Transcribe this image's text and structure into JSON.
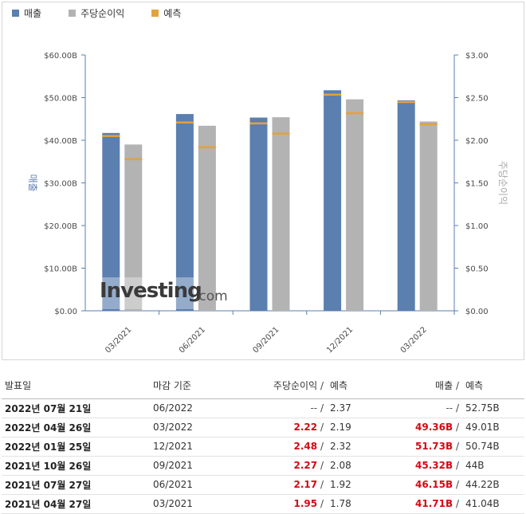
{
  "legend": {
    "items": [
      {
        "label": "매출",
        "color": "#5b7faf"
      },
      {
        "label": "주당순이익",
        "color": "#b3b3b3"
      },
      {
        "label": "예측",
        "color": "#e3a23a"
      }
    ]
  },
  "watermark": {
    "brand": "Investing",
    "suffix": ".com"
  },
  "chart_data": {
    "type": "bar",
    "title": "",
    "categories": [
      "03/2021",
      "06/2021",
      "09/2021",
      "12/2021",
      "03/2022"
    ],
    "series": [
      {
        "name": "매출",
        "axis": "left",
        "color": "#5b7faf",
        "values": [
          41.71,
          46.15,
          45.32,
          51.73,
          49.36
        ],
        "forecast": [
          41.04,
          44.22,
          44.0,
          50.74,
          49.01
        ]
      },
      {
        "name": "주당순이익",
        "axis": "right",
        "color": "#b3b3b3",
        "values": [
          1.95,
          2.17,
          2.27,
          2.48,
          2.22
        ],
        "forecast": [
          1.78,
          1.92,
          2.08,
          2.32,
          2.19
        ]
      }
    ],
    "forecast_color": "#e3a23a",
    "ylabel_left": "매출",
    "ylabel_right": "주당순이익",
    "ylim_left": [
      0,
      60
    ],
    "ylim_right": [
      0,
      3
    ],
    "left_ticks": [
      "$0.00",
      "$10.00B",
      "$20.00B",
      "$30.00B",
      "$40.00B",
      "$50.00B",
      "$60.00B"
    ],
    "right_ticks": [
      "$0.00",
      "$0.50",
      "$1.00",
      "$1.50",
      "$2.00",
      "$2.50",
      "$3.00"
    ],
    "grid": false
  },
  "table": {
    "headers": {
      "date": "발표일",
      "period": "마감 기준",
      "eps": "주당순이익",
      "eps_forecast": "예측",
      "revenue": "매출",
      "revenue_forecast": "예측",
      "slash": "/"
    },
    "rows": [
      {
        "date": "2022년 07월 21일",
        "period": "06/2022",
        "eps": "--",
        "eps_forecast": "2.37",
        "revenue": "--",
        "revenue_forecast": "52.75B"
      },
      {
        "date": "2022년 04월 26일",
        "period": "03/2022",
        "eps": "2.22",
        "eps_forecast": "2.19",
        "revenue": "49.36B",
        "revenue_forecast": "49.01B"
      },
      {
        "date": "2022년 01월 25일",
        "period": "12/2021",
        "eps": "2.48",
        "eps_forecast": "2.32",
        "revenue": "51.73B",
        "revenue_forecast": "50.74B"
      },
      {
        "date": "2021년 10월 26일",
        "period": "09/2021",
        "eps": "2.27",
        "eps_forecast": "2.08",
        "revenue": "45.32B",
        "revenue_forecast": "44B"
      },
      {
        "date": "2021년 07월 27일",
        "period": "06/2021",
        "eps": "2.17",
        "eps_forecast": "1.92",
        "revenue": "46.15B",
        "revenue_forecast": "44.22B"
      },
      {
        "date": "2021년 04월 27일",
        "period": "03/2021",
        "eps": "1.95",
        "eps_forecast": "1.78",
        "revenue": "41.71B",
        "revenue_forecast": "41.04B"
      }
    ]
  }
}
